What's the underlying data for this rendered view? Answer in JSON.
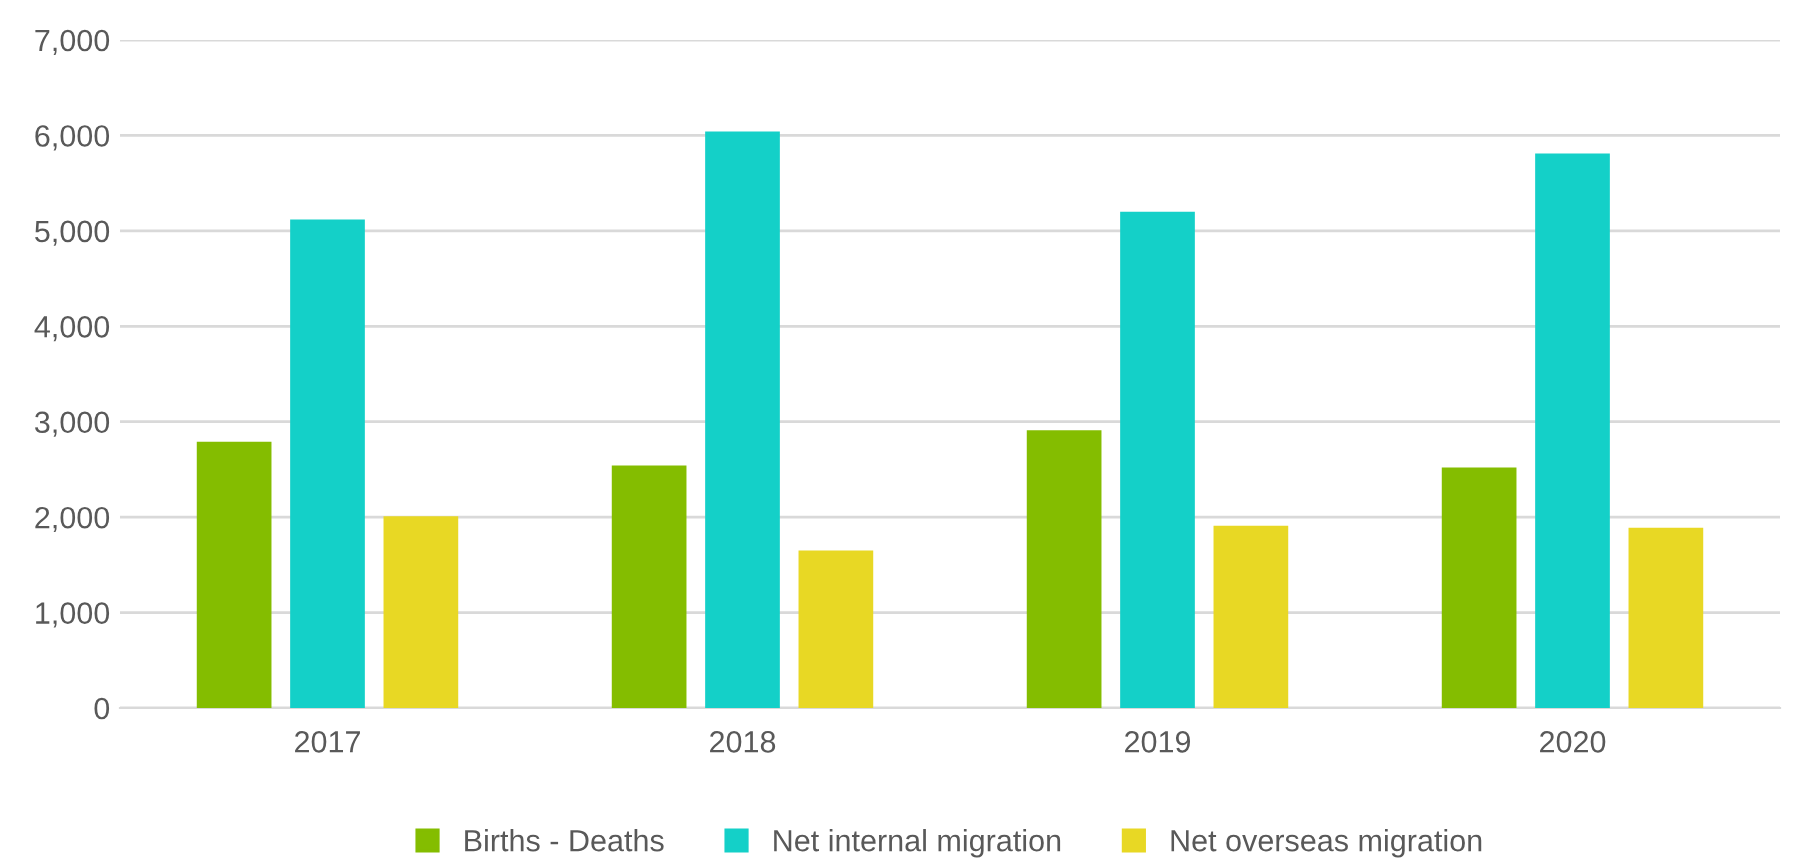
{
  "chart_data": {
    "type": "bar",
    "categories": [
      "2017",
      "2018",
      "2019",
      "2020"
    ],
    "series": [
      {
        "name": "Births - Deaths",
        "color": "#84bd00",
        "values": [
          2790,
          2540,
          2910,
          2520
        ]
      },
      {
        "name": "Net internal migration",
        "color": "#14d0c8",
        "values": [
          5120,
          6040,
          5200,
          5810
        ]
      },
      {
        "name": "Net overseas migration",
        "color": "#e8d824",
        "values": [
          2010,
          1650,
          1910,
          1890
        ]
      }
    ],
    "ylim": [
      0,
      7000
    ],
    "yticks": [
      {
        "value": 0,
        "label": "0"
      },
      {
        "value": 1000,
        "label": "1,000"
      },
      {
        "value": 2000,
        "label": "2,000"
      },
      {
        "value": 3000,
        "label": "3,000"
      },
      {
        "value": 4000,
        "label": "4,000"
      },
      {
        "value": 5000,
        "label": "5,000"
      },
      {
        "value": 6000,
        "label": "6,000"
      },
      {
        "value": 7000,
        "label": "7,000"
      }
    ],
    "grid": "y",
    "legend": "bottom"
  }
}
